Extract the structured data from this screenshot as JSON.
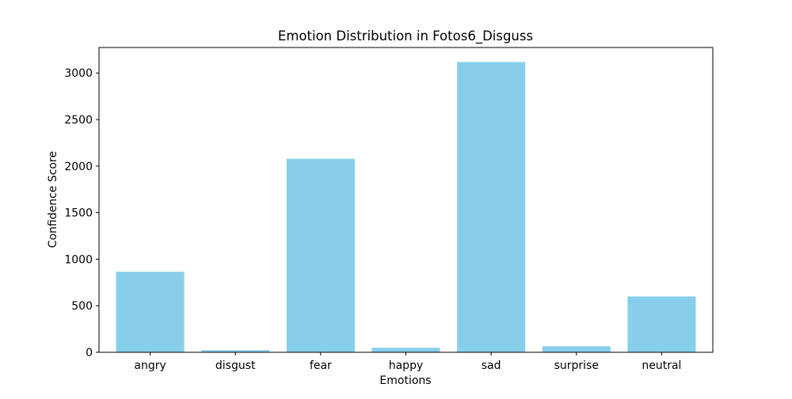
{
  "chart_data": {
    "type": "bar",
    "title": "Emotion Distribution in Fotos6_Disguss",
    "xlabel": "Emotions",
    "ylabel": "Confidence Score",
    "categories": [
      "angry",
      "disgust",
      "fear",
      "happy",
      "sad",
      "surprise",
      "neutral"
    ],
    "values": [
      865,
      23,
      2078,
      49,
      3118,
      65,
      600
    ],
    "ylim": [
      0,
      3274
    ],
    "yticks": [
      0,
      500,
      1000,
      1500,
      2000,
      2500,
      3000
    ],
    "ytick_labels": [
      "0",
      "500",
      "1000",
      "1500",
      "2000",
      "2500",
      "3000"
    ],
    "bar_color": "#87ceeb",
    "grid": false,
    "legend": "none"
  }
}
